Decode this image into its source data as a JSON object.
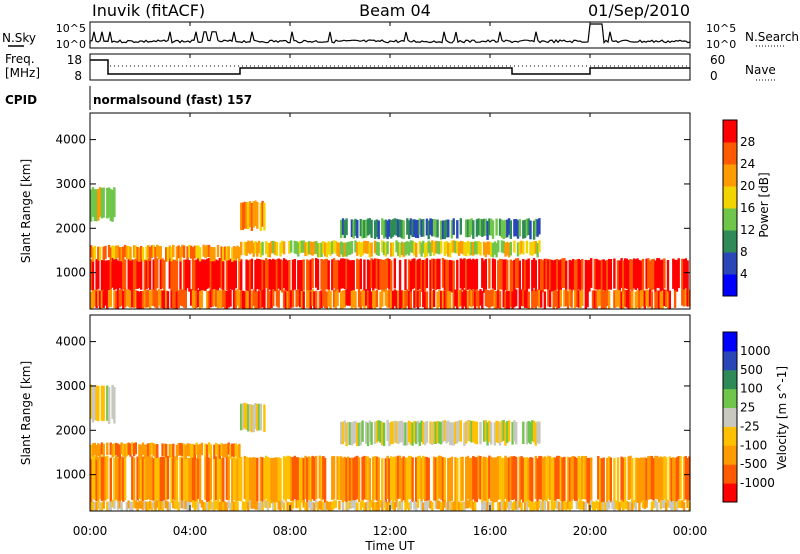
{
  "header": {
    "station": "Inuvik (fitACF)",
    "beam": "Beam 04",
    "date": "01/Sep/2010"
  },
  "top_panel": {
    "left_label": "N.Sky",
    "right_label": "N.Search",
    "left_ticks": [
      "10^5",
      "10^0"
    ],
    "right_ticks": [
      "10^5",
      "10^0"
    ]
  },
  "freq_panel": {
    "left_label_line1": "Freq.",
    "left_label_line2": "[MHz]",
    "right_label": "Nave",
    "left_ticks": [
      "18",
      "8"
    ],
    "right_ticks": [
      "60",
      "0"
    ]
  },
  "cpid": {
    "label": "CPID",
    "program": "normalsound (fast) 157"
  },
  "x_axis": {
    "label": "Time UT",
    "ticks": [
      "00:00",
      "04:00",
      "08:00",
      "12:00",
      "16:00",
      "20:00",
      "00:00"
    ]
  },
  "colors": {
    "power": [
      "#0000ff",
      "#2a47b8",
      "#2e8b57",
      "#6fc64a",
      "#f2d400",
      "#ff9a00",
      "#ff5a00",
      "#ff0000"
    ],
    "velocity": [
      "#ff0000",
      "#ff5a00",
      "#ff9a00",
      "#ffc000",
      "#c8c8c0",
      "#6fc64a",
      "#2e8b57",
      "#2a47b8",
      "#0000ff"
    ]
  },
  "chart_data": [
    {
      "type": "heatmap",
      "title": "Power",
      "ylabel": "Slant Range [km]",
      "xlabel": "Time UT",
      "yticks": [
        "1000",
        "2000",
        "3000",
        "4000"
      ],
      "ylim": [
        180,
        4600
      ],
      "colorbar": {
        "label": "Power [dB]",
        "ticks": [
          "4",
          "8",
          "12",
          "16",
          "20",
          "24",
          "28"
        ],
        "range": [
          0,
          32
        ]
      },
      "bands": [
        {
          "t0": 0,
          "t1": 24,
          "r0": 600,
          "r1": 1300,
          "level": 7
        },
        {
          "t0": 0,
          "t1": 6,
          "r0": 1300,
          "r1": 1600,
          "level": 5
        },
        {
          "t0": 0,
          "t1": 1,
          "r0": 2200,
          "r1": 2900,
          "level": 4
        },
        {
          "t0": 6,
          "t1": 7,
          "r0": 2000,
          "r1": 2600,
          "level": 5
        },
        {
          "t0": 10,
          "t1": 18,
          "r0": 1800,
          "r1": 2200,
          "level": 2
        },
        {
          "t0": 6,
          "t1": 18,
          "r0": 1400,
          "r1": 1700,
          "level": 4
        },
        {
          "t0": 0,
          "t1": 24,
          "r0": 200,
          "r1": 600,
          "level": 6
        }
      ]
    },
    {
      "type": "heatmap",
      "title": "Velocity",
      "ylabel": "Slant Range [km]",
      "xlabel": "Time UT",
      "yticks": [
        "1000",
        "2000",
        "3000",
        "4000"
      ],
      "ylim": [
        180,
        4600
      ],
      "colorbar": {
        "label": "Velocity [m s^-1]",
        "ticks": [
          "1000",
          "500",
          "100",
          "25",
          "-25",
          "-100",
          "-500",
          "-1000"
        ]
      },
      "bands": [
        {
          "t0": 0,
          "t1": 24,
          "r0": 400,
          "r1": 1400,
          "level": 2
        },
        {
          "t0": 0,
          "t1": 6,
          "r0": 1400,
          "r1": 1700,
          "level": 2
        },
        {
          "t0": 0,
          "t1": 1,
          "r0": 2200,
          "r1": 3000,
          "level": 4
        },
        {
          "t0": 6,
          "t1": 7,
          "r0": 2000,
          "r1": 2600,
          "level": 4
        },
        {
          "t0": 10,
          "t1": 18,
          "r0": 1700,
          "r1": 2200,
          "level": 4
        },
        {
          "t0": 0,
          "t1": 24,
          "r0": 200,
          "r1": 400,
          "level": 3
        }
      ]
    }
  ]
}
